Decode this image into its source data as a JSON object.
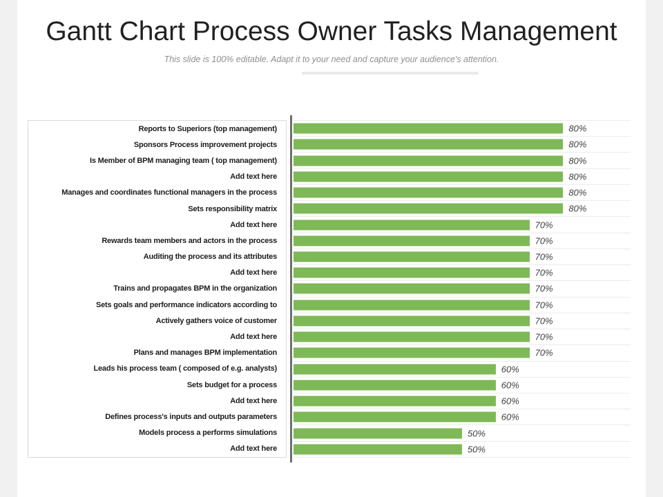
{
  "page": {
    "background": "#ffffff",
    "side_strip_color": "#f1f1f1"
  },
  "header": {
    "title": "Gantt Chart Process Owner Tasks Management",
    "subtitle": "This slide is 100% editable. Adapt it to your need and capture your audience's attention."
  },
  "chart_data": {
    "type": "bar",
    "orientation": "horizontal",
    "title": "Gantt Chart Process Owner Tasks Management",
    "xlim": [
      0,
      100
    ],
    "unit": "%",
    "bar_color": "#7eb857",
    "axis_line_color": "#6e6e6e",
    "separator_color": "#ececec",
    "grid": "row separator lines across plot area",
    "value_label_position": "right of bar end",
    "legend": "none",
    "categories": [
      "Reports to Superiors (top management)",
      "Sponsors Process improvement projects",
      "Is Member of BPM managing team ( top management)",
      "Add text here",
      "Manages and coordinates functional managers in the process",
      "Sets responsibility matrix",
      "Add text here",
      "Rewards team members and actors in the process",
      "Auditing the process and its attributes",
      "Add text here",
      "Trains and propagates BPM in the organization",
      "Sets goals and performance indicators according to",
      "Actively gathers voice of customer",
      "Add text here",
      "Plans and manages BPM implementation",
      "Leads his process team ( composed of e.g. analysts)",
      "Sets budget for a process",
      "Add text here",
      "Defines process's inputs and outputs parameters",
      "Models process a performs simulations",
      "Add text here"
    ],
    "values": [
      80,
      80,
      80,
      80,
      80,
      80,
      70,
      70,
      70,
      70,
      70,
      70,
      70,
      70,
      70,
      60,
      60,
      60,
      60,
      50,
      50
    ]
  }
}
